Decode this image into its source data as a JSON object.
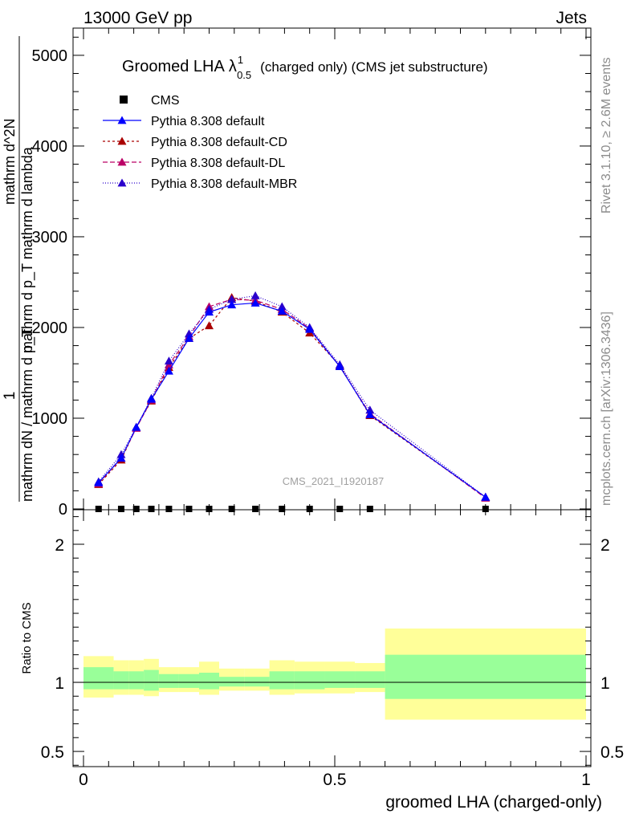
{
  "header": {
    "energy": "13000 GeV pp",
    "category": "Jets"
  },
  "side_labels": {
    "rivet": "Rivet 3.1.10, ≥ 2.6M events",
    "source": "mcplots.cern.ch [arXiv:1306.3436]"
  },
  "watermark": "CMS_2021_I1920187",
  "colors": {
    "default": "#0000ff",
    "default_cd": "#aa0000",
    "default_dl": "#bb0066",
    "default_mbr": "#2a00cc",
    "band_outer": "#ffff99",
    "band_inner": "#99ff99"
  },
  "chart_data": [
    {
      "type": "line",
      "title": {
        "main": "Groomed LHA",
        "lambda": "λ",
        "sup": "1",
        "sub": "0.5",
        "suffix": "(charged only) (CMS jet substructure)"
      },
      "ylabel": {
        "numerator": "1",
        "denominator": "mathrm dN / mathrm d p_T",
        "top_numerator": "mathrm d^2N",
        "top_denominator": "mathrm d p_T mathrm d lambda"
      },
      "xlim": [
        0,
        1
      ],
      "ylim": [
        0,
        5300
      ],
      "yticks": [
        0,
        1000,
        2000,
        3000,
        4000,
        5000
      ],
      "ytick_labels": [
        "0",
        "1000",
        "2000",
        "3000",
        "4000",
        "5000"
      ],
      "grid": false,
      "legend_position": "top-left",
      "legend": [
        {
          "label": "CMS",
          "marker": "square",
          "series": "cms"
        },
        {
          "label": "Pythia 8.308 default",
          "marker": "triangle",
          "series": "default"
        },
        {
          "label": "Pythia 8.308 default-CD",
          "marker": "triangle",
          "series": "default_cd"
        },
        {
          "label": "Pythia 8.308 default-DL",
          "marker": "triangle",
          "series": "default_dl"
        },
        {
          "label": "Pythia 8.308 default-MBR",
          "marker": "triangle",
          "series": "default_mbr"
        }
      ],
      "x": [
        0.03,
        0.075,
        0.105,
        0.135,
        0.17,
        0.21,
        0.25,
        0.295,
        0.342,
        0.395,
        0.45,
        0.51,
        0.57,
        0.8
      ],
      "series": [
        {
          "key": "cms",
          "name": "CMS",
          "values": [
            0,
            0,
            0,
            0,
            0,
            0,
            0,
            0,
            0,
            0,
            0,
            0,
            0,
            0
          ]
        },
        {
          "key": "default",
          "name": "Pythia 8.308 default",
          "values": [
            290,
            560,
            900,
            1210,
            1520,
            1880,
            2170,
            2250,
            2270,
            2180,
            1980,
            1570,
            1040,
            130
          ]
        },
        {
          "key": "default_cd",
          "name": "Pythia 8.308 default-CD",
          "values": [
            270,
            540,
            900,
            1190,
            1560,
            1880,
            2020,
            2330,
            2290,
            2170,
            1940,
            1580,
            1030,
            130
          ]
        },
        {
          "key": "default_dl",
          "name": "Pythia 8.308 default-DL",
          "values": [
            280,
            560,
            890,
            1200,
            1590,
            1900,
            2230,
            2310,
            2300,
            2200,
            1990,
            1570,
            1050,
            120
          ]
        },
        {
          "key": "default_mbr",
          "name": "Pythia 8.308 default-MBR",
          "values": [
            300,
            600,
            900,
            1220,
            1630,
            1930,
            2200,
            2310,
            2350,
            2230,
            2000,
            1590,
            1090,
            130
          ]
        }
      ]
    },
    {
      "type": "area",
      "ylabel": "Ratio to CMS",
      "xlabel": "groomed LHA (charged-only)",
      "xlim": [
        0,
        1
      ],
      "ylim": [
        0.39,
        2.25
      ],
      "xticks": [
        0,
        0.5,
        1
      ],
      "xtick_labels": [
        "0",
        "0.5",
        "1"
      ],
      "yticks": [
        0.5,
        1,
        2
      ],
      "ytick_labels": [
        "0.5",
        "1",
        "2"
      ],
      "bins": [
        {
          "x0": 0.0,
          "x1": 0.06,
          "outer": [
            0.89,
            1.19
          ],
          "inner": [
            0.95,
            1.11
          ]
        },
        {
          "x0": 0.06,
          "x1": 0.09,
          "outer": [
            0.91,
            1.16
          ],
          "inner": [
            0.95,
            1.08
          ]
        },
        {
          "x0": 0.09,
          "x1": 0.12,
          "outer": [
            0.91,
            1.16
          ],
          "inner": [
            0.95,
            1.08
          ]
        },
        {
          "x0": 0.12,
          "x1": 0.15,
          "outer": [
            0.9,
            1.17
          ],
          "inner": [
            0.94,
            1.09
          ]
        },
        {
          "x0": 0.15,
          "x1": 0.19,
          "outer": [
            0.93,
            1.11
          ],
          "inner": [
            0.96,
            1.06
          ]
        },
        {
          "x0": 0.19,
          "x1": 0.23,
          "outer": [
            0.93,
            1.11
          ],
          "inner": [
            0.96,
            1.06
          ]
        },
        {
          "x0": 0.23,
          "x1": 0.27,
          "outer": [
            0.91,
            1.15
          ],
          "inner": [
            0.95,
            1.07
          ]
        },
        {
          "x0": 0.27,
          "x1": 0.32,
          "outer": [
            0.94,
            1.1
          ],
          "inner": [
            0.97,
            1.04
          ]
        },
        {
          "x0": 0.32,
          "x1": 0.37,
          "outer": [
            0.94,
            1.1
          ],
          "inner": [
            0.97,
            1.04
          ]
        },
        {
          "x0": 0.37,
          "x1": 0.42,
          "outer": [
            0.91,
            1.16
          ],
          "inner": [
            0.95,
            1.08
          ]
        },
        {
          "x0": 0.42,
          "x1": 0.48,
          "outer": [
            0.92,
            1.15
          ],
          "inner": [
            0.95,
            1.08
          ]
        },
        {
          "x0": 0.48,
          "x1": 0.54,
          "outer": [
            0.92,
            1.15
          ],
          "inner": [
            0.96,
            1.08
          ]
        },
        {
          "x0": 0.54,
          "x1": 0.6,
          "outer": [
            0.93,
            1.14
          ],
          "inner": [
            0.96,
            1.08
          ]
        },
        {
          "x0": 0.6,
          "x1": 1.0,
          "outer": [
            0.73,
            1.39
          ],
          "inner": [
            0.88,
            1.2
          ]
        }
      ],
      "reference_line": 1
    }
  ]
}
